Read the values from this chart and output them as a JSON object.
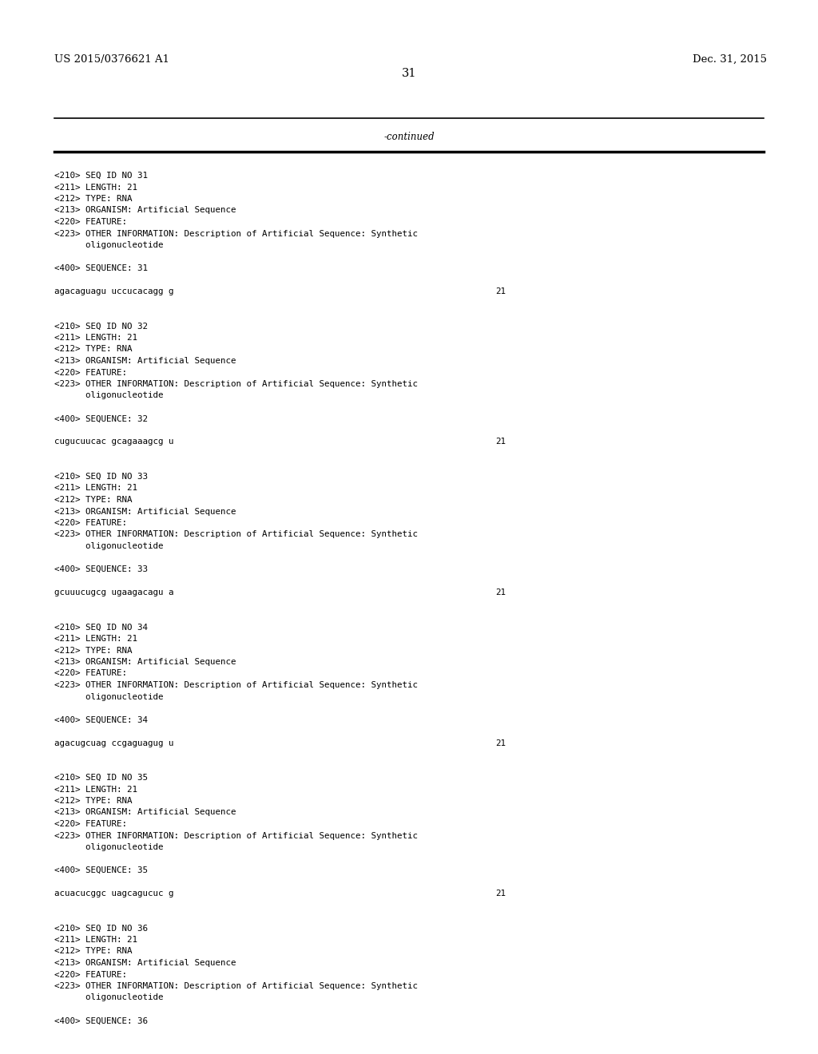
{
  "background_color": "#ffffff",
  "header_left": "US 2015/0376621 A1",
  "header_right": "Dec. 31, 2015",
  "page_number": "31",
  "continued_label": "-continued",
  "content_font_size": 7.8,
  "header_font_size": 9.5,
  "page_num_font_size": 10.5,
  "continued_font_size": 8.5,
  "content_lines": [
    "<210> SEQ ID NO 31",
    "<211> LENGTH: 21",
    "<212> TYPE: RNA",
    "<213> ORGANISM: Artificial Sequence",
    "<220> FEATURE:",
    "<223> OTHER INFORMATION: Description of Artificial Sequence: Synthetic",
    "      oligonucleotide",
    "",
    "<400> SEQUENCE: 31",
    "",
    "agacaguagu uccucacagg g",
    "",
    "",
    "<210> SEQ ID NO 32",
    "<211> LENGTH: 21",
    "<212> TYPE: RNA",
    "<213> ORGANISM: Artificial Sequence",
    "<220> FEATURE:",
    "<223> OTHER INFORMATION: Description of Artificial Sequence: Synthetic",
    "      oligonucleotide",
    "",
    "<400> SEQUENCE: 32",
    "",
    "cugucuucac gcagaaagcg u",
    "",
    "",
    "<210> SEQ ID NO 33",
    "<211> LENGTH: 21",
    "<212> TYPE: RNA",
    "<213> ORGANISM: Artificial Sequence",
    "<220> FEATURE:",
    "<223> OTHER INFORMATION: Description of Artificial Sequence: Synthetic",
    "      oligonucleotide",
    "",
    "<400> SEQUENCE: 33",
    "",
    "gcuuucugcg ugaagacagu a",
    "",
    "",
    "<210> SEQ ID NO 34",
    "<211> LENGTH: 21",
    "<212> TYPE: RNA",
    "<213> ORGANISM: Artificial Sequence",
    "<220> FEATURE:",
    "<223> OTHER INFORMATION: Description of Artificial Sequence: Synthetic",
    "      oligonucleotide",
    "",
    "<400> SEQUENCE: 34",
    "",
    "agacugcuag ccgaguagug u",
    "",
    "",
    "<210> SEQ ID NO 35",
    "<211> LENGTH: 21",
    "<212> TYPE: RNA",
    "<213> ORGANISM: Artificial Sequence",
    "<220> FEATURE:",
    "<223> OTHER INFORMATION: Description of Artificial Sequence: Synthetic",
    "      oligonucleotide",
    "",
    "<400> SEQUENCE: 35",
    "",
    "acuacucggc uagcagucuc g",
    "",
    "",
    "<210> SEQ ID NO 36",
    "<211> LENGTH: 21",
    "<212> TYPE: RNA",
    "<213> ORGANISM: Artificial Sequence",
    "<220> FEATURE:",
    "<223> OTHER INFORMATION: Description of Artificial Sequence: Synthetic",
    "      oligonucleotide",
    "",
    "<400> SEQUENCE: 36"
  ],
  "sequence_line_indices": [
    10,
    23,
    36,
    49,
    62
  ],
  "sequence_numbers": [
    "21",
    "21",
    "21",
    "21",
    "21"
  ]
}
